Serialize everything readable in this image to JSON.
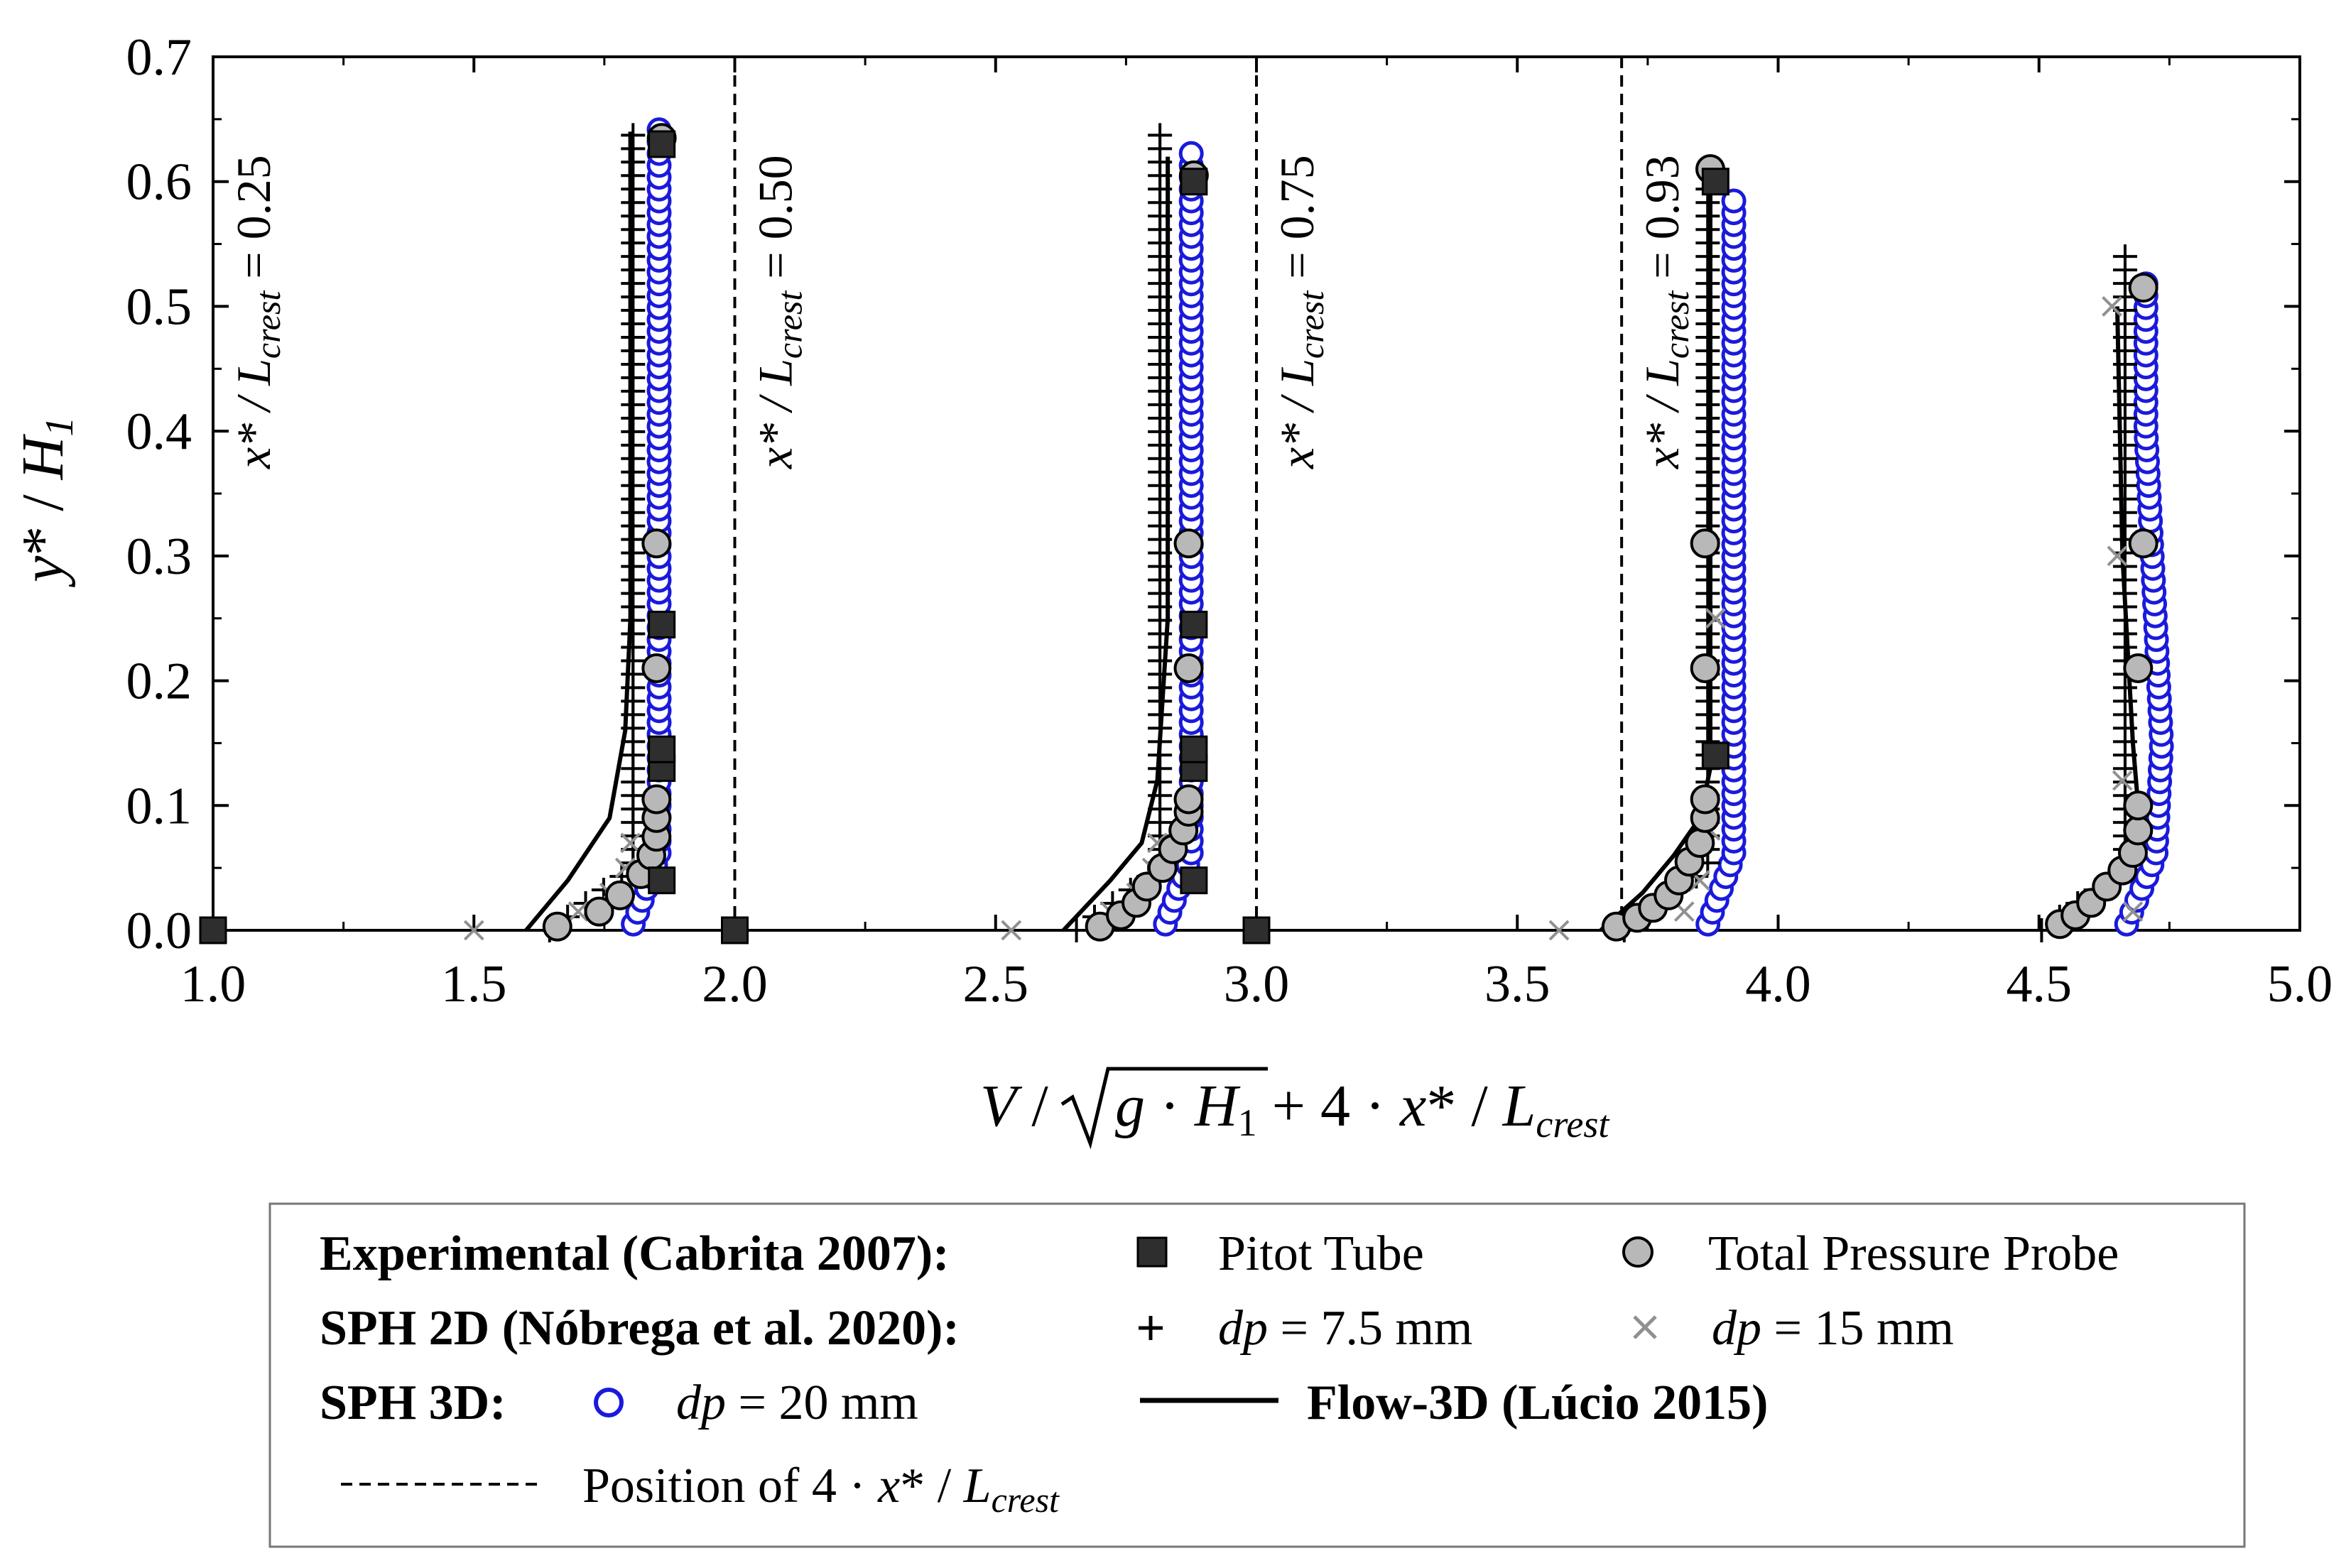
{
  "chart_data": {
    "type": "scatter",
    "x_axis": {
      "label_parts": [
        "V",
        " / ",
        "g",
        " · ",
        "H",
        "1",
        " + 4 · ",
        "x",
        "* / ",
        "L",
        "crest"
      ],
      "range": [
        1.0,
        5.0
      ],
      "ticks": [
        1.0,
        1.5,
        2.0,
        2.5,
        3.0,
        3.5,
        4.0,
        4.5,
        5.0
      ],
      "tick_labels": [
        "1.0",
        "1.5",
        "2.0",
        "2.5",
        "3.0",
        "3.5",
        "4.0",
        "4.5",
        "5.0"
      ]
    },
    "y_axis": {
      "label_parts": [
        "y",
        "* / ",
        "H",
        "1"
      ],
      "range": [
        0.0,
        0.7
      ],
      "ticks": [
        0.0,
        0.1,
        0.2,
        0.3,
        0.4,
        0.5,
        0.6,
        0.7
      ],
      "tick_labels": [
        "0.0",
        "0.1",
        "0.2",
        "0.3",
        "0.4",
        "0.5",
        "0.6",
        "0.7"
      ]
    },
    "section_positions": [
      {
        "x": 1.0,
        "label_prefix": "x* / ",
        "label_sub": "crest",
        "label_value": " = 0.25",
        "dashed_line": false
      },
      {
        "x": 2.0,
        "label_prefix": "x* / ",
        "label_sub": "crest",
        "label_value": " = 0.50",
        "dashed_line": true
      },
      {
        "x": 3.0,
        "label_prefix": "x* / ",
        "label_sub": "crest",
        "label_value": " = 0.75",
        "dashed_line": true
      },
      {
        "x": 3.7,
        "label_prefix": "x* / ",
        "label_sub": "crest",
        "label_value": " = 0.93",
        "dashed_line": true
      }
    ],
    "profiles": [
      {
        "pitot": [
          [
            1.0,
            0.0
          ],
          [
            1.86,
            0.04
          ],
          [
            1.86,
            0.13
          ],
          [
            1.86,
            0.145
          ],
          [
            1.86,
            0.245
          ],
          [
            1.86,
            0.63
          ]
        ],
        "probe": [
          [
            1.66,
            0.003
          ],
          [
            1.74,
            0.015
          ],
          [
            1.78,
            0.028
          ],
          [
            1.82,
            0.045
          ],
          [
            1.84,
            0.06
          ],
          [
            1.85,
            0.075
          ],
          [
            1.85,
            0.09
          ],
          [
            1.85,
            0.105
          ],
          [
            1.85,
            0.21
          ],
          [
            1.85,
            0.31
          ],
          [
            1.86,
            0.635
          ]
        ],
        "sph2d_75": {
          "x_base": 1.805,
          "y_top": 0.64
        },
        "sph2d_15": [
          [
            1.5,
            0.0
          ],
          [
            1.7,
            0.015
          ],
          [
            1.76,
            0.03
          ],
          [
            1.79,
            0.05
          ],
          [
            1.8,
            0.07
          ]
        ],
        "sph3d_20": {
          "x_base": 1.855,
          "y_top": 0.645
        },
        "flow3d": [
          [
            1.6,
            0.0
          ],
          [
            1.68,
            0.04
          ],
          [
            1.76,
            0.09
          ],
          [
            1.79,
            0.16
          ],
          [
            1.8,
            0.25
          ],
          [
            1.8,
            0.64
          ]
        ]
      },
      {
        "pitot": [
          [
            2.0,
            0.0
          ],
          [
            2.88,
            0.04
          ],
          [
            2.88,
            0.13
          ],
          [
            2.88,
            0.145
          ],
          [
            2.88,
            0.245
          ],
          [
            2.88,
            0.6
          ]
        ],
        "probe": [
          [
            2.7,
            0.003
          ],
          [
            2.74,
            0.012
          ],
          [
            2.77,
            0.022
          ],
          [
            2.79,
            0.035
          ],
          [
            2.82,
            0.05
          ],
          [
            2.84,
            0.065
          ],
          [
            2.86,
            0.08
          ],
          [
            2.87,
            0.095
          ],
          [
            2.87,
            0.105
          ],
          [
            2.87,
            0.21
          ],
          [
            2.87,
            0.31
          ],
          [
            2.88,
            0.605
          ]
        ],
        "sph2d_75": {
          "x_base": 2.815,
          "y_top": 0.64
        },
        "sph2d_15": [
          [
            2.53,
            0.0
          ],
          [
            2.72,
            0.015
          ],
          [
            2.77,
            0.03
          ],
          [
            2.8,
            0.05
          ],
          [
            2.81,
            0.07
          ]
        ],
        "sph3d_20": {
          "x_base": 2.875,
          "y_top": 0.63
        },
        "flow3d": [
          [
            2.63,
            0.0
          ],
          [
            2.72,
            0.04
          ],
          [
            2.78,
            0.07
          ],
          [
            2.81,
            0.12
          ],
          [
            2.83,
            0.25
          ],
          [
            2.83,
            0.62
          ]
        ]
      },
      {
        "pitot": [
          [
            3.0,
            0.0
          ],
          [
            3.88,
            0.14
          ],
          [
            3.88,
            0.6
          ]
        ],
        "probe": [
          [
            3.69,
            0.003
          ],
          [
            3.73,
            0.01
          ],
          [
            3.76,
            0.018
          ],
          [
            3.79,
            0.028
          ],
          [
            3.81,
            0.04
          ],
          [
            3.83,
            0.055
          ],
          [
            3.85,
            0.07
          ],
          [
            3.86,
            0.09
          ],
          [
            3.86,
            0.105
          ],
          [
            3.86,
            0.21
          ],
          [
            3.86,
            0.31
          ],
          [
            3.87,
            0.61
          ]
        ],
        "sph2d_75": {
          "x_base": 3.865,
          "y_top": 0.6
        },
        "sph2d_15": [
          [
            3.58,
            0.0
          ],
          [
            3.82,
            0.015
          ],
          [
            3.85,
            0.04
          ],
          [
            3.87,
            0.08
          ],
          [
            3.88,
            0.25
          ]
        ],
        "sph3d_20": {
          "x_base": 3.915,
          "y_top": 0.585
        },
        "flow3d": [
          [
            3.66,
            0.0
          ],
          [
            3.74,
            0.03
          ],
          [
            3.8,
            0.06
          ],
          [
            3.85,
            0.09
          ],
          [
            3.87,
            0.13
          ],
          [
            3.87,
            0.6
          ]
        ]
      },
      {
        "pitot": [],
        "probe": [
          [
            4.54,
            0.005
          ],
          [
            4.57,
            0.012
          ],
          [
            4.6,
            0.022
          ],
          [
            4.63,
            0.035
          ],
          [
            4.66,
            0.048
          ],
          [
            4.68,
            0.062
          ],
          [
            4.69,
            0.08
          ],
          [
            4.69,
            0.1
          ],
          [
            4.69,
            0.21
          ],
          [
            4.7,
            0.31
          ],
          [
            4.7,
            0.515
          ]
        ],
        "sph2d_75": {
          "x_base": 4.665,
          "y_top": 0.54
        },
        "sph2d_15": [
          [
            4.68,
            0.015
          ],
          [
            4.66,
            0.12
          ],
          [
            4.65,
            0.3
          ],
          [
            4.64,
            0.5
          ]
        ],
        "sph3d_20": {
          "x_base": 4.715,
          "y_top": 0.52
        },
        "flow3d": [
          [
            4.65,
            0.5
          ],
          [
            4.66,
            0.3
          ],
          [
            4.68,
            0.15
          ],
          [
            4.69,
            0.1
          ]
        ]
      }
    ],
    "legend": {
      "row1_title": "Experimental (Cabrita 2007):",
      "pitot_label": "Pitot Tube",
      "probe_label": "Total Pressure Probe",
      "row2_title": "SPH 2D (Nóbrega et al. 2020):",
      "dp75_label_var": "dp",
      "dp75_label_val": " = 7.5 mm",
      "dp15_label_var": "dp",
      "dp15_label_val": " = 15 mm",
      "row3_title": "SPH 3D:",
      "dp20_label_var": "dp",
      "dp20_label_val": " = 20 mm",
      "flow3d_label": "Flow-3D (Lúcio 2015)",
      "position_label_prefix": "Position of 4 · ",
      "position_label_var": "x",
      "position_label_mid": "* / ",
      "position_label_L": "L",
      "position_label_sub": "crest"
    },
    "colors": {
      "axis": "#000000",
      "sph3d": "#1a1adc",
      "probe_fill": "#b8b8b8",
      "pitot_fill": "#2e2e2e",
      "sph2d_15": "#909090",
      "sph2d_75": "#000000",
      "flow3d": "#000000"
    }
  }
}
